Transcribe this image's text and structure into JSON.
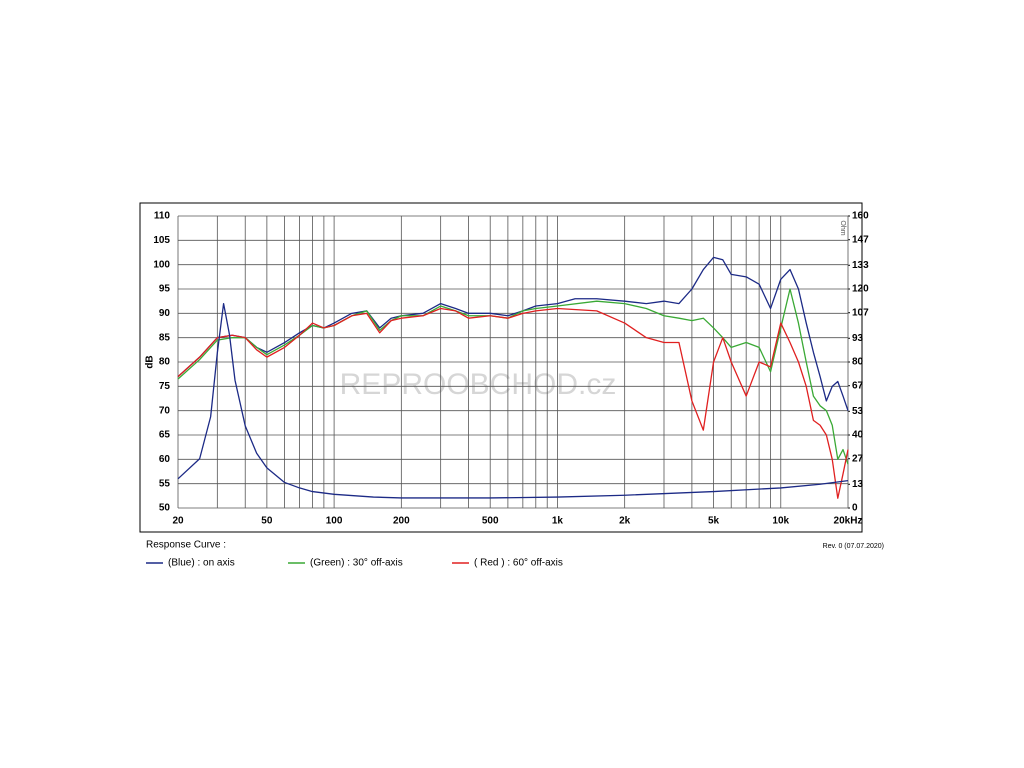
{
  "chart_data": {
    "type": "line",
    "xscale": "log",
    "xlim": [
      20,
      20000
    ],
    "xticks": [
      20,
      50,
      100,
      200,
      500,
      {
        "value": 1000,
        "label": "1k"
      },
      {
        "value": 2000,
        "label": "2k"
      },
      {
        "value": 5000,
        "label": "5k"
      },
      {
        "value": 10000,
        "label": "10k"
      },
      {
        "value": 20000,
        "label": "20kHz"
      }
    ],
    "xgrid": [
      30,
      40,
      60,
      70,
      80,
      90,
      300,
      400,
      600,
      700,
      800,
      900,
      3000,
      4000,
      6000,
      7000,
      8000,
      9000
    ],
    "ylim": [
      50,
      110
    ],
    "yticks": [
      50,
      55,
      60,
      65,
      70,
      75,
      80,
      85,
      90,
      95,
      100,
      105,
      110
    ],
    "y2lim": [
      0,
      160
    ],
    "y2ticks": [
      0,
      13,
      27,
      40,
      53,
      67,
      80,
      93,
      107,
      120,
      133,
      147,
      160
    ],
    "ylabel": "dB",
    "y2label": "Ohm",
    "grid": true,
    "watermark": "REPROOBCHOD.cz",
    "caption": "Response Curve :",
    "revision": "Rev. 0 (07.07.2020)",
    "series": [
      {
        "name": "(Blue)  : on axis",
        "color": "#1c2a86",
        "x": [
          20,
          25,
          30,
          35,
          40,
          45,
          50,
          60,
          70,
          80,
          90,
          100,
          120,
          140,
          160,
          180,
          200,
          250,
          300,
          350,
          400,
          500,
          600,
          700,
          800,
          1000,
          1200,
          1500,
          2000,
          2500,
          3000,
          3500,
          4000,
          4500,
          5000,
          5500,
          6000,
          7000,
          8000,
          9000,
          10000,
          11000,
          12000,
          13000,
          14000,
          15000,
          16000,
          17000,
          18000,
          19000,
          20000
        ],
        "values": [
          77,
          81,
          85,
          85.5,
          85,
          83,
          82,
          84,
          86,
          87.5,
          87,
          88,
          90,
          90.5,
          87,
          89,
          89.5,
          90,
          92,
          91,
          90,
          90,
          89.5,
          90.5,
          91.5,
          92,
          93,
          93,
          92.5,
          92,
          92.5,
          92,
          95,
          99,
          101.5,
          101,
          98,
          97.5,
          96,
          91,
          97,
          99,
          95,
          88,
          82,
          77,
          72,
          75,
          76,
          73,
          70
        ]
      },
      {
        "name": "(Green) : 30° off-axis",
        "color": "#3aa935",
        "x": [
          20,
          25,
          30,
          35,
          40,
          45,
          50,
          60,
          70,
          80,
          90,
          100,
          120,
          140,
          160,
          180,
          200,
          250,
          300,
          350,
          400,
          500,
          600,
          700,
          800,
          1000,
          1500,
          2000,
          2500,
          3000,
          3500,
          4000,
          4500,
          5000,
          5500,
          6000,
          7000,
          8000,
          9000,
          10000,
          11000,
          12000,
          13000,
          14000,
          15000,
          16000,
          17000,
          18000,
          19000,
          20000
        ],
        "values": [
          76.5,
          80.5,
          84.5,
          85,
          85,
          83,
          81.5,
          83.5,
          85.5,
          87.5,
          87,
          87.5,
          89.5,
          90.5,
          86.5,
          88.5,
          89.5,
          89.5,
          91.5,
          90.5,
          89.5,
          89.5,
          89,
          90.5,
          91,
          91.5,
          92.5,
          92,
          91,
          89.5,
          89,
          88.5,
          89,
          87,
          85,
          83,
          84,
          83,
          78,
          87,
          95,
          88,
          80,
          73,
          71,
          70,
          67,
          60,
          62,
          59
        ]
      },
      {
        "name": "( Red ) : 60° off-axis",
        "color": "#e02020",
        "x": [
          20,
          25,
          30,
          35,
          40,
          45,
          50,
          60,
          70,
          80,
          90,
          100,
          120,
          140,
          160,
          180,
          200,
          250,
          300,
          350,
          400,
          500,
          600,
          700,
          800,
          1000,
          1500,
          2000,
          2500,
          3000,
          3500,
          4000,
          4500,
          5000,
          5500,
          6000,
          7000,
          8000,
          9000,
          10000,
          11000,
          12000,
          13000,
          14000,
          15000,
          16000,
          17000,
          18000,
          19000,
          20000
        ],
        "values": [
          77,
          81,
          85,
          85.5,
          85,
          82.5,
          81,
          83,
          85.5,
          88,
          87,
          87.5,
          89.5,
          90,
          86,
          88.5,
          89,
          89.5,
          91,
          90.5,
          89,
          89.5,
          89,
          90,
          90.5,
          91,
          90.5,
          88,
          85,
          84,
          84,
          72,
          66,
          80,
          85,
          80,
          73,
          80,
          79,
          88,
          84,
          80,
          75,
          68,
          67,
          65,
          60,
          52,
          57,
          62
        ]
      },
      {
        "axis": "y2",
        "color": "#1c2a86",
        "x": [
          20,
          25,
          28,
          30,
          32,
          34,
          36,
          40,
          45,
          50,
          60,
          70,
          80,
          100,
          150,
          200,
          300,
          500,
          1000,
          2000,
          5000,
          10000,
          15000,
          20000
        ],
        "values": [
          16,
          27,
          50,
          85,
          112,
          95,
          70,
          45,
          30,
          22,
          14,
          11,
          9,
          7.5,
          6,
          5.5,
          5.5,
          5.5,
          6,
          7,
          9,
          11,
          13,
          15
        ]
      }
    ]
  }
}
